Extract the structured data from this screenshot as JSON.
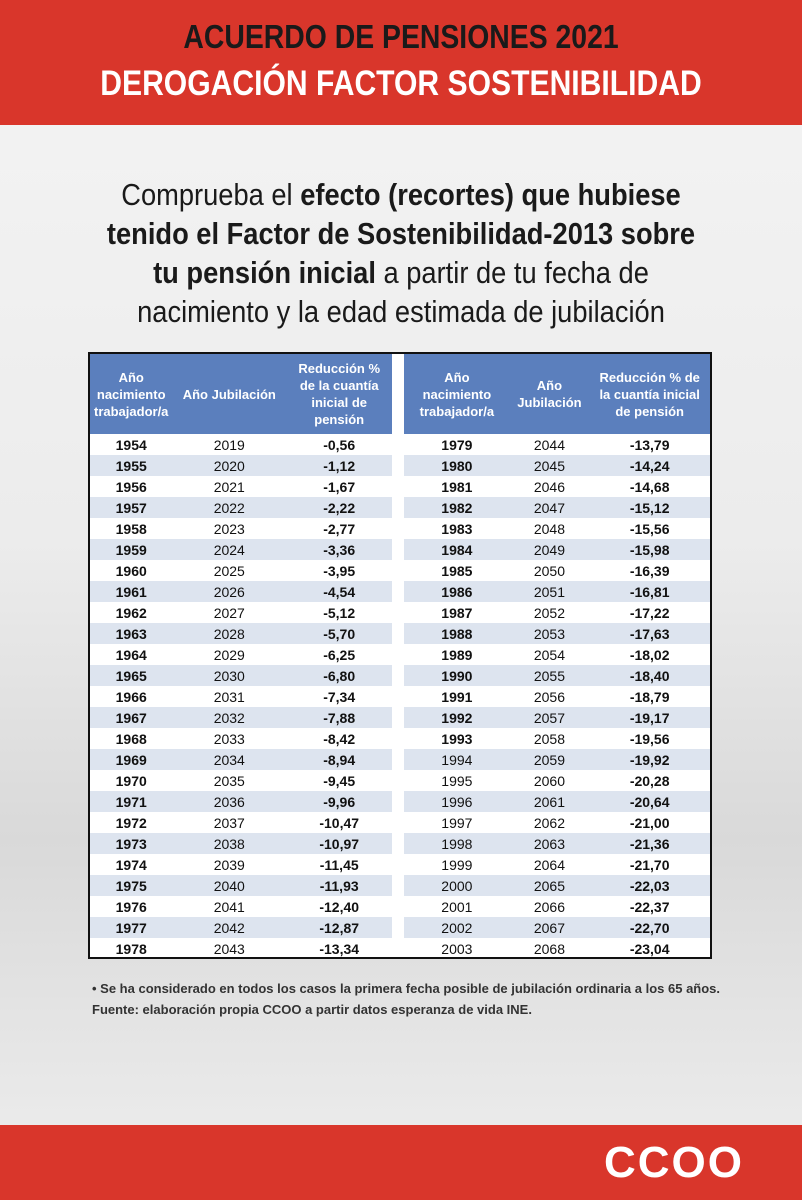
{
  "header": {
    "line1": "ACUERDO DE PENSIONES 2021",
    "line2": "DEROGACIÓN FACTOR SOSTENIBILIDAD"
  },
  "intro": [
    {
      "text": "Comprueba el ",
      "bold": false
    },
    {
      "text": "efecto (recortes) que hubiese tenido el Factor de Sostenibilidad-2013 sobre tu pensión inicial",
      "bold": true
    },
    {
      "text": " a partir de tu fecha de nacimiento y la edad estimada de jubilación",
      "bold": false
    }
  ],
  "tables": [
    {
      "headers": [
        "Año nacimiento trabajador/a",
        "Año Jubilación",
        "Reducción % de la cuantía inicial de pensión"
      ],
      "rows": [
        [
          "1954",
          "2019",
          "-0,56"
        ],
        [
          "1955",
          "2020",
          "-1,12"
        ],
        [
          "1956",
          "2021",
          "-1,67"
        ],
        [
          "1957",
          "2022",
          "-2,22"
        ],
        [
          "1958",
          "2023",
          "-2,77"
        ],
        [
          "1959",
          "2024",
          "-3,36"
        ],
        [
          "1960",
          "2025",
          "-3,95"
        ],
        [
          "1961",
          "2026",
          "-4,54"
        ],
        [
          "1962",
          "2027",
          "-5,12"
        ],
        [
          "1963",
          "2028",
          "-5,70"
        ],
        [
          "1964",
          "2029",
          "-6,25"
        ],
        [
          "1965",
          "2030",
          "-6,80"
        ],
        [
          "1966",
          "2031",
          "-7,34"
        ],
        [
          "1967",
          "2032",
          "-7,88"
        ],
        [
          "1968",
          "2033",
          "-8,42"
        ],
        [
          "1969",
          "2034",
          "-8,94"
        ],
        [
          "1970",
          "2035",
          "-9,45"
        ],
        [
          "1971",
          "2036",
          "-9,96"
        ],
        [
          "1972",
          "2037",
          "-10,47"
        ],
        [
          "1973",
          "2038",
          "-10,97"
        ],
        [
          "1974",
          "2039",
          "-11,45"
        ],
        [
          "1975",
          "2040",
          "-11,93"
        ],
        [
          "1976",
          "2041",
          "-12,40"
        ],
        [
          "1977",
          "2042",
          "-12,87"
        ],
        [
          "1978",
          "2043",
          "-13,34"
        ]
      ]
    },
    {
      "headers": [
        "Año nacimiento trabajador/a",
        "Año Jubilación",
        "Reducción % de la cuantía inicial de pensión"
      ],
      "rows": [
        [
          "1979",
          "2044",
          "-13,79"
        ],
        [
          "1980",
          "2045",
          "-14,24"
        ],
        [
          "1981",
          "2046",
          "-14,68"
        ],
        [
          "1982",
          "2047",
          "-15,12"
        ],
        [
          "1983",
          "2048",
          "-15,56"
        ],
        [
          "1984",
          "2049",
          "-15,98"
        ],
        [
          "1985",
          "2050",
          "-16,39"
        ],
        [
          "1986",
          "2051",
          "-16,81"
        ],
        [
          "1987",
          "2052",
          "-17,22"
        ],
        [
          "1988",
          "2053",
          "-17,63"
        ],
        [
          "1989",
          "2054",
          "-18,02"
        ],
        [
          "1990",
          "2055",
          "-18,40"
        ],
        [
          "1991",
          "2056",
          "-18,79"
        ],
        [
          "1992",
          "2057",
          "-19,17"
        ],
        [
          "1993",
          "2058",
          "-19,56"
        ],
        [
          "1994",
          "2059",
          "-19,92"
        ],
        [
          "1995",
          "2060",
          "-20,28"
        ],
        [
          "1996",
          "2061",
          "-20,64"
        ],
        [
          "1997",
          "2062",
          "-21,00"
        ],
        [
          "1998",
          "2063",
          "-21,36"
        ],
        [
          "1999",
          "2064",
          "-21,70"
        ],
        [
          "2000",
          "2065",
          "-22,03"
        ],
        [
          "2001",
          "2066",
          "-22,37"
        ],
        [
          "2002",
          "2067",
          "-22,70"
        ],
        [
          "2003",
          "2068",
          "-23,04"
        ]
      ]
    }
  ],
  "notes": [
    "• Se ha considerado en todos los casos la primera fecha posible de jubilación ordinaria a los 65 años.",
    "Fuente: elaboración propia CCOO a partir datos esperanza de vida INE."
  ],
  "footer": {
    "logo": "CCOO"
  }
}
